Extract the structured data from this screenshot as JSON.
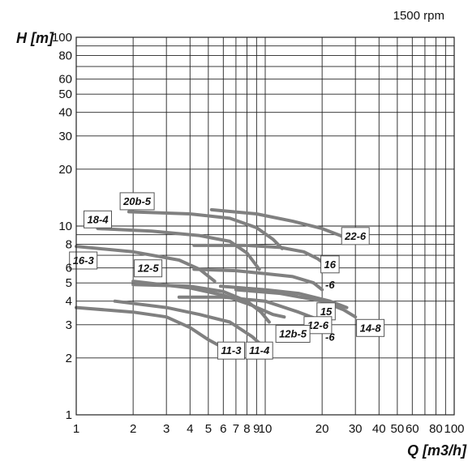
{
  "chart_data": {
    "type": "line",
    "title": "",
    "speed_label": "1500 rpm",
    "xlabel": "Q [m3/h]",
    "ylabel": "H [m]",
    "xscale": "log",
    "yscale": "log",
    "xlim": [
      1,
      100
    ],
    "ylim": [
      1,
      100
    ],
    "grid": true,
    "curve_color": "#808080",
    "x_ticks": [
      {
        "value": 1,
        "label": "1"
      },
      {
        "value": 2,
        "label": "2"
      },
      {
        "value": 3,
        "label": "3"
      },
      {
        "value": 4,
        "label": "4"
      },
      {
        "value": 5,
        "label": "5"
      },
      {
        "value": 6,
        "label": "6"
      },
      {
        "value": 7,
        "label": "7"
      },
      {
        "value": 8,
        "label": "8"
      },
      {
        "value": 9,
        "label": "9"
      },
      {
        "value": 10,
        "label": "10"
      },
      {
        "value": 20,
        "label": "20"
      },
      {
        "value": 30,
        "label": "30"
      },
      {
        "value": 40,
        "label": "40"
      },
      {
        "value": 50,
        "label": "50"
      },
      {
        "value": 60,
        "label": "60"
      },
      {
        "value": 80,
        "label": "80"
      },
      {
        "value": 100,
        "label": "100"
      }
    ],
    "x_grid": [
      1,
      2,
      3,
      4,
      5,
      6,
      7,
      8,
      9,
      10,
      20,
      30,
      40,
      50,
      60,
      70,
      80,
      90,
      100
    ],
    "y_ticks": [
      {
        "value": 1,
        "label": "1"
      },
      {
        "value": 2,
        "label": "2"
      },
      {
        "value": 3,
        "label": "3"
      },
      {
        "value": 4,
        "label": "4"
      },
      {
        "value": 5,
        "label": "5"
      },
      {
        "value": 6,
        "label": "6"
      },
      {
        "value": 8,
        "label": "8"
      },
      {
        "value": 10,
        "label": "10"
      },
      {
        "value": 20,
        "label": "20"
      },
      {
        "value": 30,
        "label": "30"
      },
      {
        "value": 40,
        "label": "40"
      },
      {
        "value": 50,
        "label": "50"
      },
      {
        "value": 60,
        "label": "60"
      },
      {
        "value": 80,
        "label": "80"
      },
      {
        "value": 100,
        "label": "100"
      }
    ],
    "y_grid": [
      1,
      2,
      3,
      4,
      5,
      6,
      7,
      8,
      9,
      10,
      20,
      30,
      40,
      50,
      60,
      70,
      80,
      90,
      100
    ],
    "series": [
      {
        "points": [
          [
            1.9,
            11.9
          ],
          [
            4.0,
            11.6
          ],
          [
            6.5,
            11.0
          ],
          [
            9.0,
            9.8
          ],
          [
            11.0,
            8.5
          ],
          [
            12.3,
            7.6
          ]
        ]
      },
      {
        "points": [
          [
            5.2,
            12.2
          ],
          [
            9.0,
            11.6
          ],
          [
            14.0,
            10.6
          ],
          [
            20.0,
            9.7
          ],
          [
            25.0,
            8.9
          ],
          [
            27.0,
            8.6
          ]
        ]
      },
      {
        "points": [
          [
            1.3,
            9.7
          ],
          [
            2.5,
            9.4
          ],
          [
            4.5,
            8.9
          ],
          [
            6.5,
            8.3
          ],
          [
            8.0,
            7.2
          ],
          [
            9.3,
            5.9
          ]
        ]
      },
      {
        "points": [
          [
            4.2,
            7.9
          ],
          [
            8.0,
            7.9
          ],
          [
            12.0,
            7.7
          ],
          [
            16.0,
            7.3
          ],
          [
            19.0,
            6.7
          ],
          [
            22.0,
            6.0
          ]
        ]
      },
      {
        "points": [
          [
            1.0,
            7.8
          ],
          [
            2.0,
            7.3
          ],
          [
            3.5,
            6.6
          ],
          [
            4.5,
            5.9
          ],
          [
            5.4,
            5.1
          ]
        ]
      },
      {
        "points": [
          [
            4.2,
            5.9
          ],
          [
            7.0,
            5.8
          ],
          [
            10.0,
            5.6
          ],
          [
            14.0,
            5.4
          ],
          [
            18.0,
            5.0
          ],
          [
            20.0,
            4.6
          ]
        ]
      },
      {
        "points": [
          [
            2.0,
            4.9
          ],
          [
            4.0,
            4.8
          ],
          [
            6.0,
            4.5
          ],
          [
            8.0,
            4.0
          ],
          [
            9.5,
            3.5
          ],
          [
            10.5,
            3.1
          ]
        ]
      },
      {
        "points": [
          [
            2.0,
            5.1
          ],
          [
            4.0,
            4.7
          ],
          [
            6.0,
            4.3
          ],
          [
            8.5,
            3.8
          ],
          [
            11.0,
            3.4
          ],
          [
            12.6,
            3.3
          ]
        ]
      },
      {
        "points": [
          [
            5.8,
            4.8
          ],
          [
            10.0,
            4.6
          ],
          [
            15.0,
            4.4
          ],
          [
            22.0,
            4.0
          ],
          [
            27.0,
            3.7
          ]
        ]
      },
      {
        "points": [
          [
            7.0,
            4.6
          ],
          [
            12.0,
            4.4
          ],
          [
            20.0,
            4.0
          ],
          [
            26.0,
            3.6
          ],
          [
            30.0,
            3.3
          ]
        ]
      },
      {
        "points": [
          [
            3.5,
            4.2
          ],
          [
            6.0,
            4.2
          ],
          [
            10.0,
            4.0
          ],
          [
            15.0,
            3.5
          ],
          [
            19.0,
            3.2
          ]
        ]
      },
      {
        "points": [
          [
            1.6,
            4.0
          ],
          [
            3.0,
            3.7
          ],
          [
            4.5,
            3.4
          ],
          [
            6.5,
            3.1
          ],
          [
            8.5,
            2.6
          ],
          [
            9.3,
            2.4
          ]
        ]
      },
      {
        "points": [
          [
            1.0,
            3.7
          ],
          [
            2.0,
            3.5
          ],
          [
            3.0,
            3.3
          ],
          [
            4.0,
            2.9
          ],
          [
            5.0,
            2.5
          ],
          [
            5.6,
            2.35
          ]
        ]
      }
    ],
    "curve_labels": [
      {
        "text": "20b-5",
        "x": 2.1,
        "y": 13.6
      },
      {
        "text": "18-4",
        "x": 1.3,
        "y": 10.9
      },
      {
        "text": "22-6",
        "x": 30.0,
        "y": 8.9
      },
      {
        "text": "16-3",
        "x": 1.09,
        "y": 6.6
      },
      {
        "text": "16",
        "x": 22.0,
        "y": 6.3
      },
      {
        "text": "12-5",
        "x": 2.4,
        "y": 6.0
      },
      {
        "text": "-6",
        "x": 22.0,
        "y": 4.9
      },
      {
        "text": "15",
        "x": 21.0,
        "y": 3.55
      },
      {
        "text": "12-6",
        "x": 19.0,
        "y": 3.0
      },
      {
        "text": "14-8",
        "x": 36.0,
        "y": 2.9
      },
      {
        "text": "12b-5",
        "x": 14.0,
        "y": 2.7
      },
      {
        "text": "-6",
        "x": 22.0,
        "y": 2.6
      },
      {
        "text": "11-3",
        "x": 6.6,
        "y": 2.2
      },
      {
        "text": "11-4",
        "x": 9.3,
        "y": 2.2
      }
    ]
  }
}
